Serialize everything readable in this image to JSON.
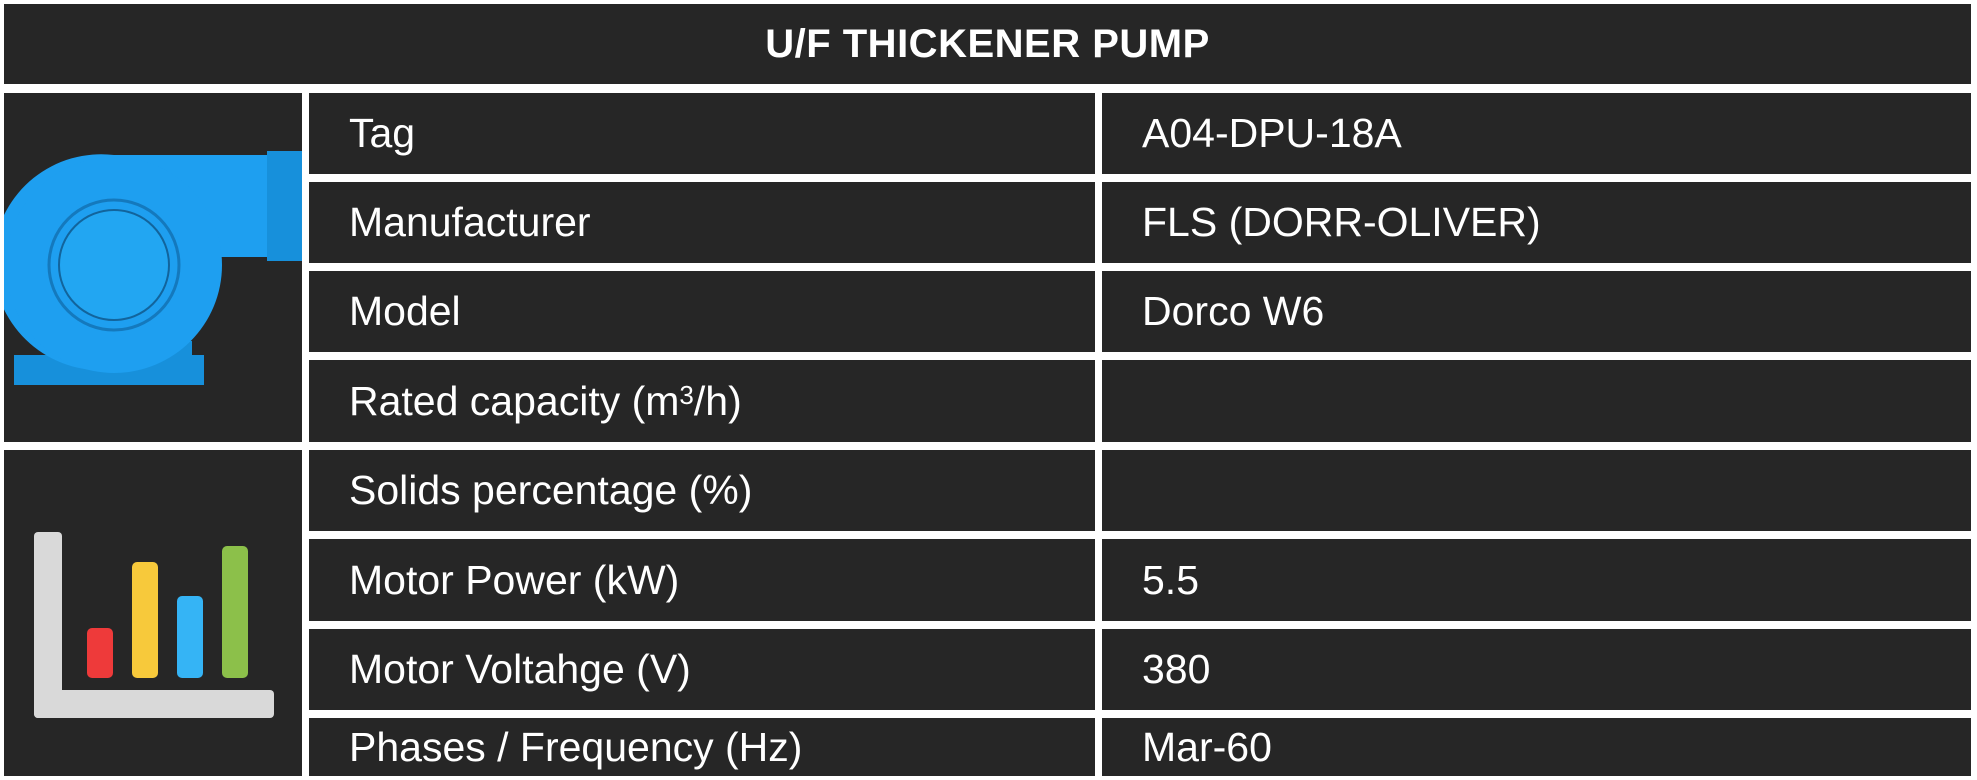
{
  "title": "U/F THICKENER PUMP",
  "icons": {
    "equipment": "centrifugal-pump-icon",
    "process": "bar-chart-icon"
  },
  "colors": {
    "cell_background": "#262626",
    "text": "#ffffff",
    "pump_blue": "#1e9ff0",
    "bar_colors": [
      "#ee3a3a",
      "#f7c93b",
      "#35b4f5",
      "#8cc04a"
    ]
  },
  "rows": [
    {
      "label": "Tag",
      "value": "A04-DPU-18A"
    },
    {
      "label": "Manufacturer",
      "value": "FLS (DORR-OLIVER)"
    },
    {
      "label": "Model",
      "value": "Dorco W6"
    },
    {
      "label_pre": "Rated capacity (m",
      "label_sup": "3",
      "label_post": "/h)",
      "value": ""
    },
    {
      "label": "Solids percentage (%)",
      "value": ""
    },
    {
      "label": "Motor Power (kW)",
      "value": "5.5"
    },
    {
      "label": "Motor Voltahge (V)",
      "value": "380"
    },
    {
      "label": "Phases / Frequency (Hz)",
      "value": "Mar-60"
    }
  ]
}
